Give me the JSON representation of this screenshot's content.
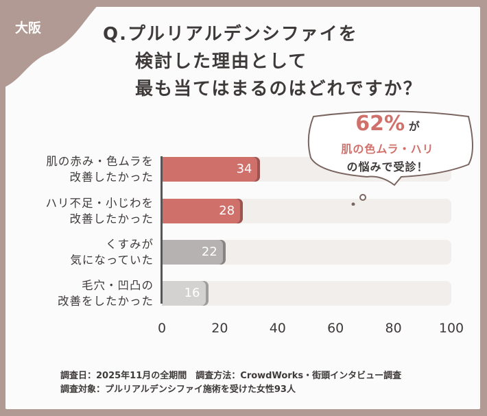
{
  "badge": {
    "region": "大阪"
  },
  "title": {
    "line1": "Q.プルリアルデンシファイを",
    "line2": "検討した理由として",
    "line3": "最も当てはまるのはどれですか？"
  },
  "callout": {
    "percent": "62%",
    "suffix": "が",
    "line2": "肌の色ムラ・ハリ",
    "line3": "の悩みで受診！"
  },
  "chart_data": {
    "type": "bar",
    "orientation": "horizontal",
    "categories": [
      [
        "肌の赤み・色ムラを",
        "改善したかった"
      ],
      [
        "ハリ不足・小じわを",
        "改善したかった"
      ],
      [
        "くすみが",
        "気になっていた"
      ],
      [
        "毛穴・凹凸の",
        "改善をしたかった"
      ]
    ],
    "values": [
      34,
      28,
      22,
      16
    ],
    "bar_colors": [
      "#d0706b",
      "#d0706b",
      "#b5b2b1",
      "#d4d2d1"
    ],
    "xlim": [
      0,
      100
    ],
    "xticks": [
      "0",
      "20",
      "40",
      "60",
      "80",
      "100"
    ],
    "grid": false
  },
  "footer": {
    "line1": "調査日：2025年11月の全期間　調査方法：CrowdWorks・街頭インタビュー調査",
    "line2": "調査対象：プルリアルデンシファイ施術を受けた女性93人"
  }
}
